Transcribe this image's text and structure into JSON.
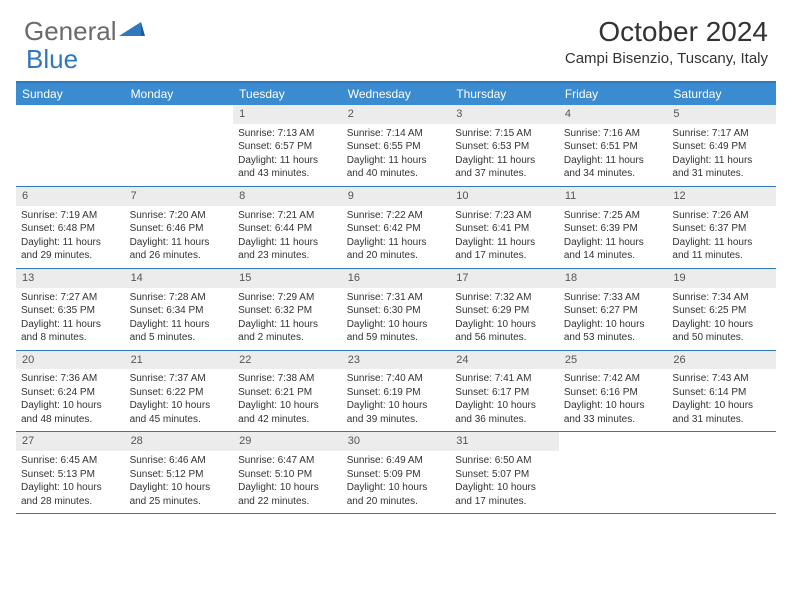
{
  "brand": {
    "part1": "General",
    "part2": "Blue"
  },
  "title": "October 2024",
  "location": "Campi Bisenzio, Tuscany, Italy",
  "colors": {
    "accent": "#2f78bd",
    "header_bg": "#3a8bd0",
    "daynum_bg": "#ececec",
    "text": "#333333"
  },
  "typography": {
    "title_fontsize": 28,
    "location_fontsize": 15,
    "dow_fontsize": 12,
    "cell_fontsize": 10
  },
  "days_of_week": [
    "Sunday",
    "Monday",
    "Tuesday",
    "Wednesday",
    "Thursday",
    "Friday",
    "Saturday"
  ],
  "weeks": [
    [
      null,
      null,
      {
        "n": "1",
        "sunrise": "7:13 AM",
        "sunset": "6:57 PM",
        "daylight": "11 hours and 43 minutes."
      },
      {
        "n": "2",
        "sunrise": "7:14 AM",
        "sunset": "6:55 PM",
        "daylight": "11 hours and 40 minutes."
      },
      {
        "n": "3",
        "sunrise": "7:15 AM",
        "sunset": "6:53 PM",
        "daylight": "11 hours and 37 minutes."
      },
      {
        "n": "4",
        "sunrise": "7:16 AM",
        "sunset": "6:51 PM",
        "daylight": "11 hours and 34 minutes."
      },
      {
        "n": "5",
        "sunrise": "7:17 AM",
        "sunset": "6:49 PM",
        "daylight": "11 hours and 31 minutes."
      }
    ],
    [
      {
        "n": "6",
        "sunrise": "7:19 AM",
        "sunset": "6:48 PM",
        "daylight": "11 hours and 29 minutes."
      },
      {
        "n": "7",
        "sunrise": "7:20 AM",
        "sunset": "6:46 PM",
        "daylight": "11 hours and 26 minutes."
      },
      {
        "n": "8",
        "sunrise": "7:21 AM",
        "sunset": "6:44 PM",
        "daylight": "11 hours and 23 minutes."
      },
      {
        "n": "9",
        "sunrise": "7:22 AM",
        "sunset": "6:42 PM",
        "daylight": "11 hours and 20 minutes."
      },
      {
        "n": "10",
        "sunrise": "7:23 AM",
        "sunset": "6:41 PM",
        "daylight": "11 hours and 17 minutes."
      },
      {
        "n": "11",
        "sunrise": "7:25 AM",
        "sunset": "6:39 PM",
        "daylight": "11 hours and 14 minutes."
      },
      {
        "n": "12",
        "sunrise": "7:26 AM",
        "sunset": "6:37 PM",
        "daylight": "11 hours and 11 minutes."
      }
    ],
    [
      {
        "n": "13",
        "sunrise": "7:27 AM",
        "sunset": "6:35 PM",
        "daylight": "11 hours and 8 minutes."
      },
      {
        "n": "14",
        "sunrise": "7:28 AM",
        "sunset": "6:34 PM",
        "daylight": "11 hours and 5 minutes."
      },
      {
        "n": "15",
        "sunrise": "7:29 AM",
        "sunset": "6:32 PM",
        "daylight": "11 hours and 2 minutes."
      },
      {
        "n": "16",
        "sunrise": "7:31 AM",
        "sunset": "6:30 PM",
        "daylight": "10 hours and 59 minutes."
      },
      {
        "n": "17",
        "sunrise": "7:32 AM",
        "sunset": "6:29 PM",
        "daylight": "10 hours and 56 minutes."
      },
      {
        "n": "18",
        "sunrise": "7:33 AM",
        "sunset": "6:27 PM",
        "daylight": "10 hours and 53 minutes."
      },
      {
        "n": "19",
        "sunrise": "7:34 AM",
        "sunset": "6:25 PM",
        "daylight": "10 hours and 50 minutes."
      }
    ],
    [
      {
        "n": "20",
        "sunrise": "7:36 AM",
        "sunset": "6:24 PM",
        "daylight": "10 hours and 48 minutes."
      },
      {
        "n": "21",
        "sunrise": "7:37 AM",
        "sunset": "6:22 PM",
        "daylight": "10 hours and 45 minutes."
      },
      {
        "n": "22",
        "sunrise": "7:38 AM",
        "sunset": "6:21 PM",
        "daylight": "10 hours and 42 minutes."
      },
      {
        "n": "23",
        "sunrise": "7:40 AM",
        "sunset": "6:19 PM",
        "daylight": "10 hours and 39 minutes."
      },
      {
        "n": "24",
        "sunrise": "7:41 AM",
        "sunset": "6:17 PM",
        "daylight": "10 hours and 36 minutes."
      },
      {
        "n": "25",
        "sunrise": "7:42 AM",
        "sunset": "6:16 PM",
        "daylight": "10 hours and 33 minutes."
      },
      {
        "n": "26",
        "sunrise": "7:43 AM",
        "sunset": "6:14 PM",
        "daylight": "10 hours and 31 minutes."
      }
    ],
    [
      {
        "n": "27",
        "sunrise": "6:45 AM",
        "sunset": "5:13 PM",
        "daylight": "10 hours and 28 minutes."
      },
      {
        "n": "28",
        "sunrise": "6:46 AM",
        "sunset": "5:12 PM",
        "daylight": "10 hours and 25 minutes."
      },
      {
        "n": "29",
        "sunrise": "6:47 AM",
        "sunset": "5:10 PM",
        "daylight": "10 hours and 22 minutes."
      },
      {
        "n": "30",
        "sunrise": "6:49 AM",
        "sunset": "5:09 PM",
        "daylight": "10 hours and 20 minutes."
      },
      {
        "n": "31",
        "sunrise": "6:50 AM",
        "sunset": "5:07 PM",
        "daylight": "10 hours and 17 minutes."
      },
      null,
      null
    ]
  ],
  "labels": {
    "sunrise_prefix": "Sunrise: ",
    "sunset_prefix": "Sunset: ",
    "daylight_prefix": "Daylight: "
  }
}
